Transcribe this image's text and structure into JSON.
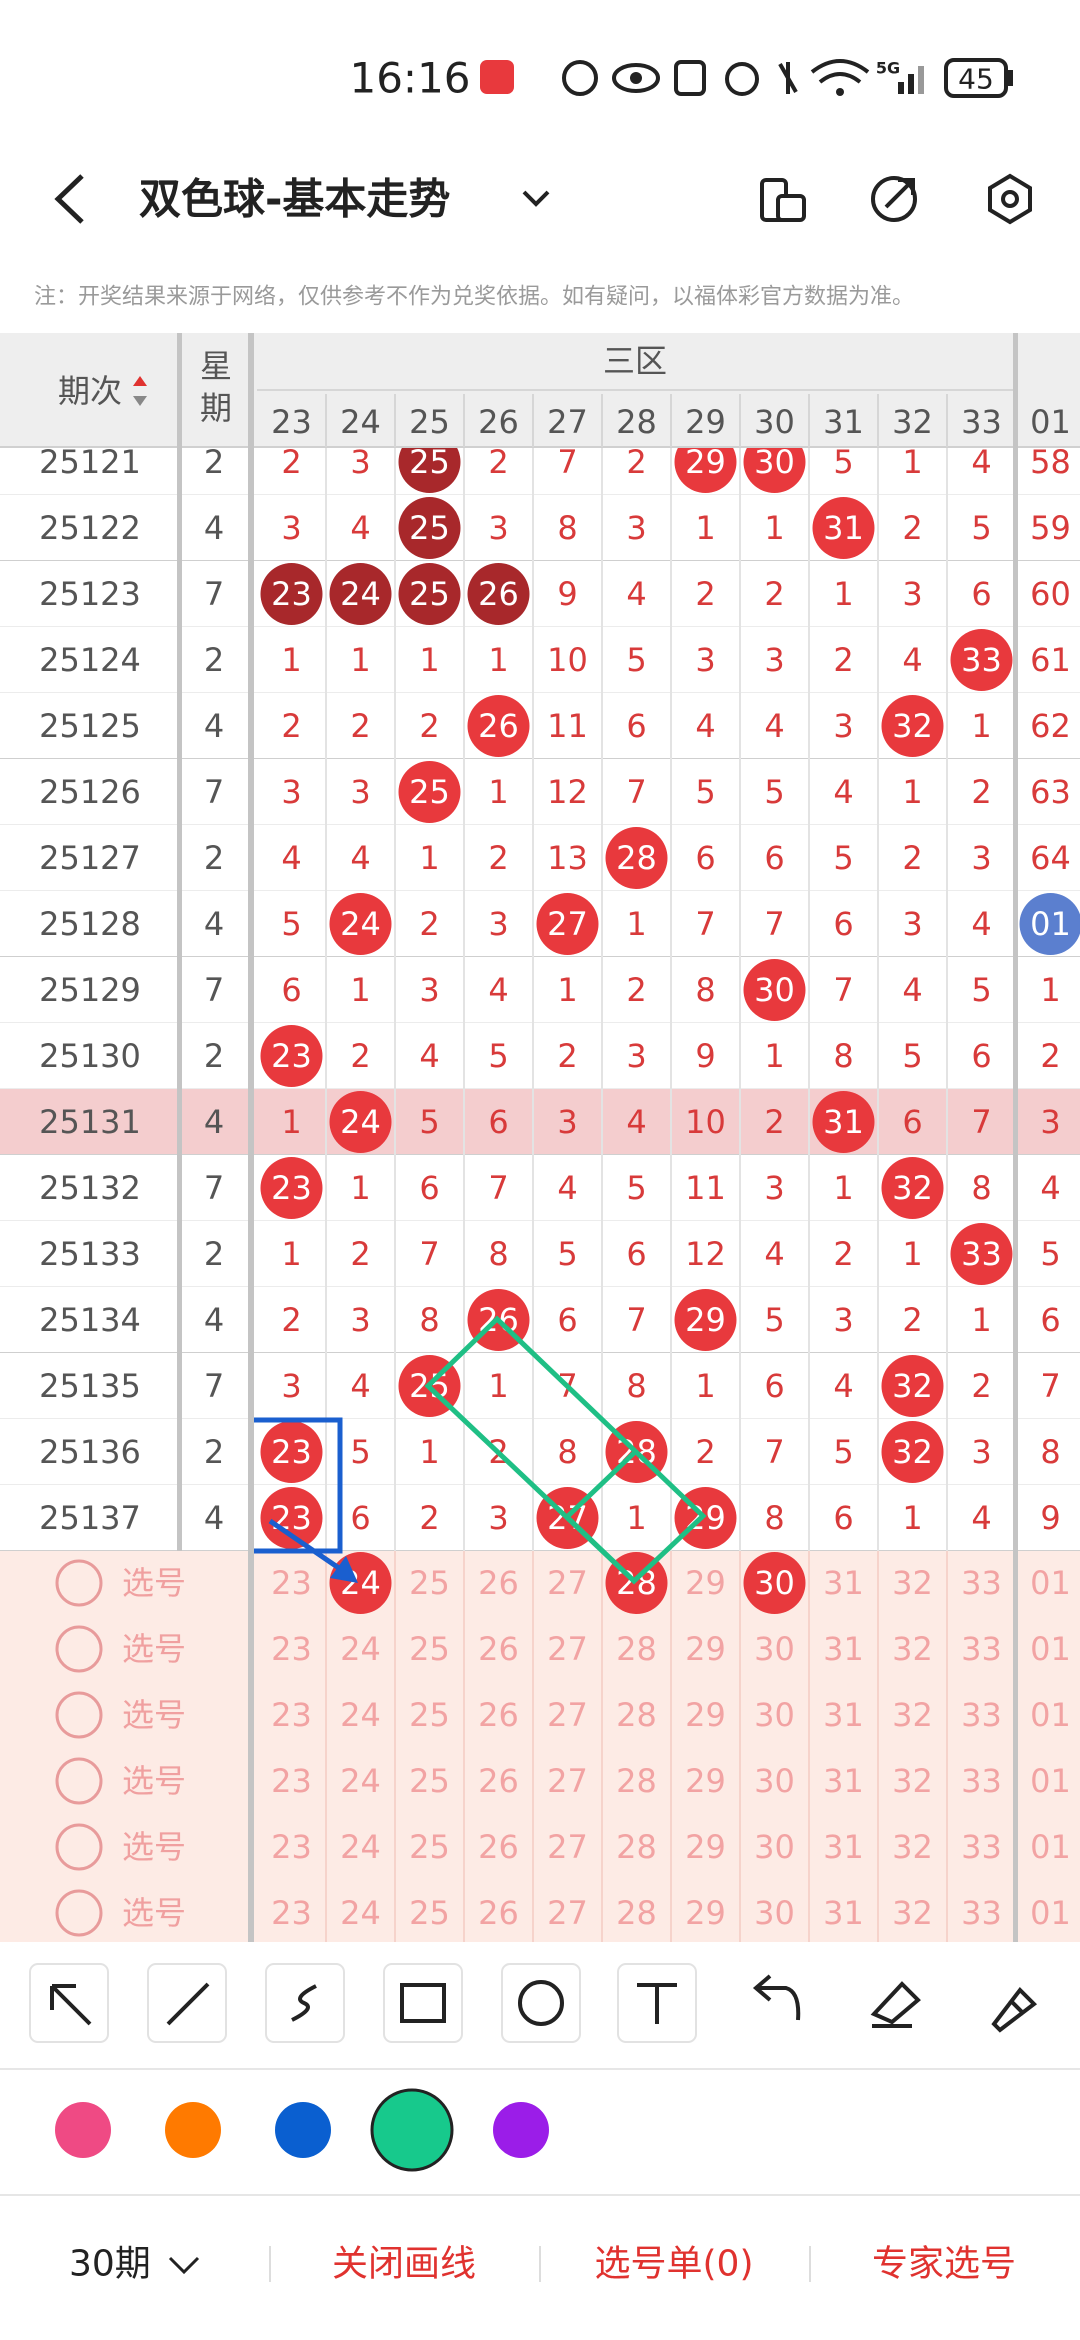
{
  "status_bar": {
    "time": "16:16",
    "network": "5G",
    "battery": "45"
  },
  "header": {
    "title": "双色球-基本走势"
  },
  "note": "注：开奖结果来源于网络，仅供参考不作为兑奖依据。如有疑问，以福体彩官方数据为准。",
  "table": {
    "period_header": "期次",
    "weekday_header": "星期",
    "zone_header": "三区",
    "columns": [
      "23",
      "24",
      "25",
      "26",
      "27",
      "28",
      "29",
      "30",
      "31",
      "32",
      "33",
      "01"
    ],
    "rows": [
      {
        "period": "25121",
        "weekday": "2",
        "cells": [
          2,
          3,
          {
            "value": 25,
            "ball": "#a8282b"
          },
          2,
          7,
          2,
          {
            "value": 29,
            "ball": "#e8393d"
          },
          {
            "value": 30,
            "ball": "#e8393d"
          },
          5,
          1,
          4,
          58
        ]
      },
      {
        "period": "25122",
        "weekday": "4",
        "cells": [
          3,
          4,
          {
            "value": 25,
            "ball": "#a8282b"
          },
          3,
          8,
          3,
          1,
          1,
          {
            "value": 31,
            "ball": "#e8393d"
          },
          2,
          5,
          59
        ]
      },
      {
        "period": "25123",
        "weekday": "7",
        "cells": [
          {
            "value": 23,
            "ball": "#a8282b"
          },
          {
            "value": 24,
            "ball": "#a8282b"
          },
          {
            "value": 25,
            "ball": "#a8282b"
          },
          {
            "value": 26,
            "ball": "#a8282b"
          },
          9,
          4,
          2,
          2,
          1,
          3,
          6,
          60
        ]
      },
      {
        "period": "25124",
        "weekday": "2",
        "cells": [
          1,
          1,
          1,
          1,
          10,
          5,
          3,
          3,
          2,
          4,
          {
            "value": 33,
            "ball": "#e8393d"
          },
          61
        ]
      },
      {
        "period": "25125",
        "weekday": "4",
        "cells": [
          2,
          2,
          2,
          {
            "value": 26,
            "ball": "#e8393d"
          },
          11,
          6,
          4,
          4,
          3,
          {
            "value": 32,
            "ball": "#e8393d"
          },
          1,
          62
        ]
      },
      {
        "period": "25126",
        "weekday": "7",
        "cells": [
          3,
          3,
          {
            "value": 25,
            "ball": "#e8393d"
          },
          1,
          12,
          7,
          5,
          5,
          4,
          1,
          2,
          63
        ]
      },
      {
        "period": "25127",
        "weekday": "2",
        "cells": [
          4,
          4,
          1,
          2,
          13,
          {
            "value": 28,
            "ball": "#e8393d"
          },
          6,
          6,
          5,
          2,
          3,
          64
        ]
      },
      {
        "period": "25128",
        "weekday": "4",
        "cells": [
          5,
          {
            "value": 24,
            "ball": "#e8393d"
          },
          2,
          3,
          {
            "value": 27,
            "ball": "#e8393d"
          },
          1,
          7,
          7,
          6,
          3,
          4,
          {
            "value": "01",
            "ball": "#5b7fcf"
          }
        ]
      },
      {
        "period": "25129",
        "weekday": "7",
        "cells": [
          6,
          1,
          3,
          4,
          1,
          2,
          8,
          {
            "value": 30,
            "ball": "#e8393d"
          },
          7,
          4,
          5,
          1
        ]
      },
      {
        "period": "25130",
        "weekday": "2",
        "cells": [
          {
            "value": 23,
            "ball": "#e8393d"
          },
          2,
          4,
          5,
          2,
          3,
          9,
          1,
          8,
          5,
          6,
          2
        ]
      },
      {
        "period": "25131",
        "weekday": "4",
        "highlight": "#f4cdce",
        "cells": [
          1,
          {
            "value": 24,
            "ball": "#e8393d"
          },
          5,
          6,
          3,
          4,
          10,
          2,
          {
            "value": 31,
            "ball": "#e8393d"
          },
          6,
          7,
          3
        ]
      },
      {
        "period": "25132",
        "weekday": "7",
        "cells": [
          {
            "value": 23,
            "ball": "#e8393d"
          },
          1,
          6,
          7,
          4,
          5,
          11,
          3,
          1,
          {
            "value": 32,
            "ball": "#e8393d"
          },
          8,
          4
        ]
      },
      {
        "period": "25133",
        "weekday": "2",
        "cells": [
          1,
          2,
          7,
          8,
          5,
          6,
          12,
          4,
          2,
          1,
          {
            "value": 33,
            "ball": "#e8393d"
          },
          5
        ]
      },
      {
        "period": "25134",
        "weekday": "4",
        "cells": [
          2,
          3,
          8,
          {
            "value": 26,
            "ball": "#e8393d"
          },
          6,
          7,
          {
            "value": 29,
            "ball": "#e8393d"
          },
          5,
          3,
          2,
          1,
          6
        ]
      },
      {
        "period": "25135",
        "weekday": "7",
        "cells": [
          3,
          4,
          {
            "value": 25,
            "ball": "#e8393d"
          },
          1,
          7,
          8,
          1,
          6,
          4,
          {
            "value": 32,
            "ball": "#e8393d"
          },
          2,
          7
        ]
      },
      {
        "period": "25136",
        "weekday": "2",
        "cells": [
          {
            "value": 23,
            "ball": "#e8393d"
          },
          5,
          1,
          2,
          8,
          {
            "value": 28,
            "ball": "#e8393d"
          },
          2,
          7,
          5,
          {
            "value": 32,
            "ball": "#e8393d"
          },
          3,
          8
        ]
      },
      {
        "period": "25137",
        "weekday": "4",
        "cells": [
          {
            "value": 23,
            "ball": "#e8393d"
          },
          6,
          2,
          3,
          {
            "value": 27,
            "ball": "#e8393d"
          },
          1,
          {
            "value": 29,
            "ball": "#e8393d"
          },
          8,
          6,
          1,
          4,
          9
        ]
      }
    ]
  },
  "picks": {
    "label": "选号",
    "rows": [
      {
        "cells": [
          "23",
          {
            "value": "24",
            "ball": "#e8393d"
          },
          "25",
          "26",
          "27",
          {
            "value": "28",
            "ball": "#e8393d"
          },
          "29",
          {
            "value": "30",
            "ball": "#e8393d"
          },
          "31",
          "32",
          "33",
          "01"
        ]
      },
      {
        "cells": [
          "23",
          "24",
          "25",
          "26",
          "27",
          "28",
          "29",
          "30",
          "31",
          "32",
          "33",
          "01"
        ]
      },
      {
        "cells": [
          "23",
          "24",
          "25",
          "26",
          "27",
          "28",
          "29",
          "30",
          "31",
          "32",
          "33",
          "01"
        ]
      },
      {
        "cells": [
          "23",
          "24",
          "25",
          "26",
          "27",
          "28",
          "29",
          "30",
          "31",
          "32",
          "33",
          "01"
        ]
      },
      {
        "cells": [
          "23",
          "24",
          "25",
          "26",
          "27",
          "28",
          "29",
          "30",
          "31",
          "32",
          "33",
          "01"
        ]
      },
      {
        "cells": [
          "23",
          "24",
          "25",
          "26",
          "27",
          "28",
          "29",
          "30",
          "31",
          "32",
          "33",
          "01"
        ]
      }
    ]
  },
  "palette": {
    "colors": [
      "#ef4a84",
      "#ff7a00",
      "#0a5fd0",
      "#17c98c",
      "#9b1de8"
    ],
    "selected": 3
  },
  "bottom_bar": {
    "periods": "30期",
    "close_drawing": "关闭画线",
    "pick_list": "选号单(0)",
    "expert_pick": "专家选号"
  }
}
